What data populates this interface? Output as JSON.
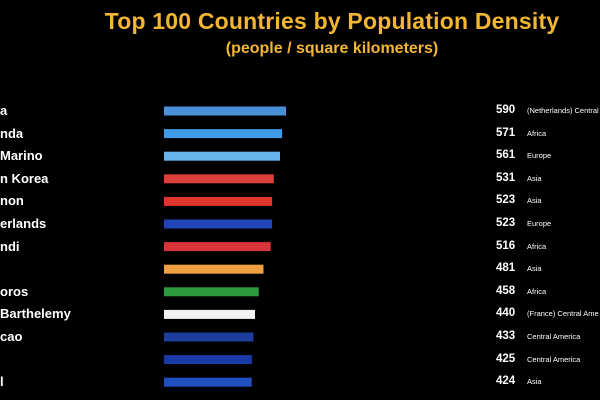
{
  "chart_data": {
    "type": "bar",
    "orientation": "horizontal",
    "title": "Top 100 Countries by Population Density",
    "subtitle": "(people / square kilometers)",
    "bars": [
      {
        "label": "a",
        "value": 590,
        "value_label": "590",
        "region": "(Netherlands) Central",
        "color": "#4a90d9"
      },
      {
        "label": "nda",
        "value": 571,
        "value_label": "571",
        "region": "Africa",
        "color": "#3d9be9"
      },
      {
        "label": "Marino",
        "value": 561,
        "value_label": "561",
        "region": "Europe",
        "color": "#66b3ee"
      },
      {
        "label": "n Korea",
        "value": 531,
        "value_label": "531",
        "region": "Asia",
        "color": "#d9403b"
      },
      {
        "label": "non",
        "value": 523,
        "value_label": "523",
        "region": "Asia",
        "color": "#e0352f"
      },
      {
        "label": "erlands",
        "value": 523,
        "value_label": "523",
        "region": "Europe",
        "color": "#1f45b8"
      },
      {
        "label": "ndi",
        "value": 516,
        "value_label": "516",
        "region": "Africa",
        "color": "#d8343a"
      },
      {
        "label": "",
        "value": 481,
        "value_label": "481",
        "region": "Asia",
        "color": "#f0a040"
      },
      {
        "label": "oros",
        "value": 458,
        "value_label": "458",
        "region": "Africa",
        "color": "#2e9a3e"
      },
      {
        "label": "Barthelemy",
        "value": 440,
        "value_label": "440",
        "region": "(France) Central Ame",
        "color": "#f2f2f2"
      },
      {
        "label": "cao",
        "value": 433,
        "value_label": "433",
        "region": "Central America",
        "color": "#1c3d9c"
      },
      {
        "label": "",
        "value": 425,
        "value_label": "425",
        "region": "Central America",
        "color": "#1a3aa8"
      },
      {
        "label": "l",
        "value": 424,
        "value_label": "424",
        "region": "Asia",
        "color": "#2050c0"
      }
    ],
    "xlim": [
      0,
      590
    ],
    "grid": false,
    "legend": "none"
  }
}
